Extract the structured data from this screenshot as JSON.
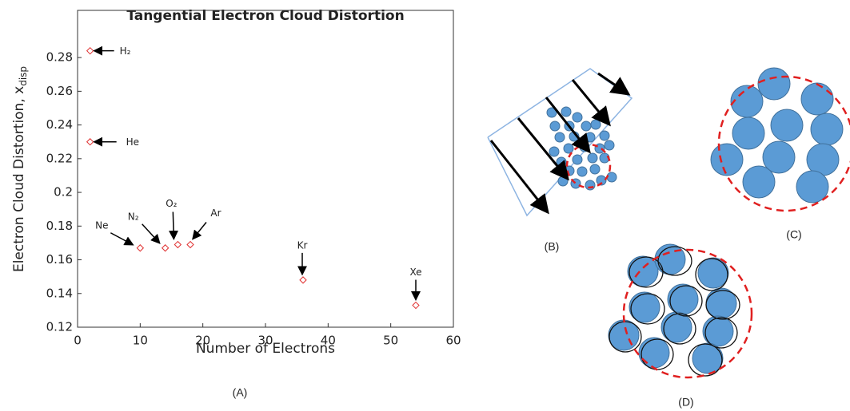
{
  "chart_data": {
    "type": "scatter",
    "title": "Tangential Electron Cloud Distortion",
    "x_label": "Number of Electrons",
    "y_label": {
      "text": "Electron Cloud Distortion, x",
      "subscript": "disp"
    },
    "x": [
      2,
      2,
      10,
      14,
      16,
      18,
      36,
      54
    ],
    "values": [
      0.284,
      0.23,
      0.167,
      0.167,
      0.169,
      0.169,
      0.148,
      0.133
    ],
    "point_labels": [
      "H₂",
      "He",
      "Ne",
      "N₂",
      "O₂",
      "Ar",
      "Kr",
      "Xe"
    ],
    "color": "#e03030",
    "xlim": [
      0,
      60
    ],
    "xticks": [
      0,
      10,
      20,
      30,
      40,
      50,
      60
    ],
    "ylim": [
      0.12,
      0.308
    ],
    "yticks": [
      0.12,
      0.14,
      0.16,
      0.18,
      0.2,
      0.22,
      0.24,
      0.26,
      0.28
    ],
    "panel_label": "(A)"
  },
  "diagram_labels": [
    "(B)",
    "(C)",
    "(D)"
  ]
}
